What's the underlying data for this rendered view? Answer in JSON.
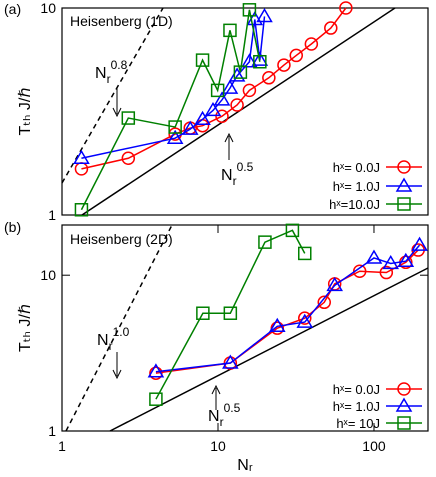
{
  "chart_data": [
    {
      "type": "line",
      "label": "(a)",
      "title": "Heisenberg (1D)",
      "ylabel": "Tₜₕ J/ℏ",
      "xscale": "log",
      "yscale": "log",
      "xlim": [
        1.5,
        337
      ],
      "ylim": [
        1,
        10
      ],
      "yticks": [
        1,
        10
      ],
      "legend": "lower right",
      "annotations": [
        {
          "base": "N",
          "sub": "r",
          "sup": "0.8"
        },
        {
          "base": "N",
          "sub": "r",
          "sup": "0.5"
        }
      ],
      "series": [
        {
          "name": "hˣ= 0.0J",
          "color": "#ff0000",
          "marker": "circle",
          "x": [
            2,
            4,
            8,
            10,
            12,
            16,
            20,
            24,
            32,
            40,
            48,
            60,
            80,
            100
          ],
          "values": [
            1.67,
            1.88,
            2.46,
            2.63,
            2.7,
            3.0,
            3.4,
            4.0,
            4.6,
            5.3,
            5.9,
            6.7,
            8.0,
            10.0
          ]
        },
        {
          "name": "hˣ= 1.0J",
          "color": "#0000ff",
          "marker": "triangle",
          "x": [
            2,
            8,
            10,
            12,
            14,
            16,
            18,
            20,
            24,
            26,
            28,
            30
          ],
          "values": [
            1.88,
            2.35,
            2.6,
            2.9,
            3.2,
            3.6,
            4.1,
            4.7,
            5.5,
            8.8,
            5.6,
            9.1
          ]
        },
        {
          "name": "hˣ=10.0J",
          "color": "#008000",
          "marker": "square",
          "x": [
            2,
            4,
            8,
            12,
            15,
            18,
            21,
            24,
            28
          ],
          "values": [
            1.06,
            2.94,
            2.66,
            5.6,
            4.0,
            7.8,
            4.9,
            9.8,
            5.5
          ]
        }
      ]
    },
    {
      "type": "line",
      "label": "(b)",
      "title": "Heisenberg (2D)",
      "ylabel": "Tₜₕ J/ℏ",
      "xlabel": "Nᵣ",
      "xscale": "log",
      "yscale": "log",
      "xlim": [
        1,
        222
      ],
      "ylim": [
        1,
        21
      ],
      "xticks": [
        1,
        10,
        100
      ],
      "yticks": [
        1,
        10
      ],
      "legend": "lower right",
      "annotations": [
        {
          "base": "N",
          "sub": "r",
          "sup": "1.0"
        },
        {
          "base": "N",
          "sub": "r",
          "sup": "0.5"
        }
      ],
      "series": [
        {
          "name": "hˣ= 0.0J",
          "color": "#ff0000",
          "marker": "circle",
          "x": [
            4,
            12,
            24,
            36,
            48,
            56,
            81,
            120,
            160,
            192
          ],
          "values": [
            2.35,
            2.73,
            4.57,
            5.3,
            6.7,
            8.8,
            10.6,
            10.4,
            12.1,
            14.5
          ]
        },
        {
          "name": "hˣ= 1.0J",
          "color": "#0000ff",
          "marker": "triangle",
          "x": [
            4,
            12,
            24,
            36,
            56,
            100,
            128,
            160,
            196
          ],
          "values": [
            2.4,
            2.73,
            4.7,
            5.0,
            8.6,
            12.9,
            11.9,
            12.3,
            15.6
          ]
        },
        {
          "name": "hˣ= 10J",
          "color": "#008000",
          "marker": "square",
          "x": [
            4,
            8,
            12,
            20,
            30,
            36
          ],
          "values": [
            1.6,
            5.7,
            5.7,
            16.3,
            19.4,
            13.8
          ]
        }
      ]
    }
  ]
}
